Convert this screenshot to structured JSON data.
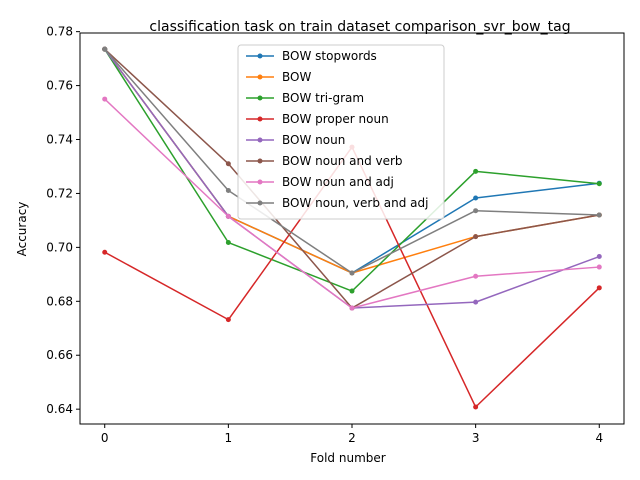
{
  "chart_data": {
    "type": "line",
    "title": "classification task on train dataset comparison_svr_bow_tag",
    "xlabel": "Fold number",
    "ylabel": "Accuracy",
    "x": [
      0,
      1,
      2,
      3,
      4
    ],
    "xticks": [
      0,
      1,
      2,
      3,
      4
    ],
    "yticks": [
      0.64,
      0.66,
      0.68,
      0.7,
      0.72,
      0.74,
      0.76,
      0.78
    ],
    "xlim": [
      -0.2,
      4.2
    ],
    "ylim": [
      0.6345,
      0.7795
    ],
    "grid": false,
    "legend_position": "upper-center",
    "series": [
      {
        "name": "BOW stopwords",
        "color": "#1f77b4",
        "values": [
          0.7735,
          0.7115,
          0.6905,
          0.7183,
          0.7238
        ]
      },
      {
        "name": "BOW",
        "color": "#ff7f0e",
        "values": [
          0.7735,
          0.7115,
          0.6905,
          0.704,
          0.712
        ]
      },
      {
        "name": "BOW tri-gram",
        "color": "#2ca02c",
        "values": [
          0.7735,
          0.7018,
          0.6838,
          0.7282,
          0.7236
        ]
      },
      {
        "name": "BOW proper noun",
        "color": "#d62728",
        "values": [
          0.6982,
          0.6732,
          0.7372,
          0.6408,
          0.685
        ]
      },
      {
        "name": "BOW noun",
        "color": "#9467bd",
        "values": [
          0.7735,
          0.7115,
          0.6775,
          0.6797,
          0.6966
        ]
      },
      {
        "name": "BOW noun and verb",
        "color": "#8c564b",
        "values": [
          0.7735,
          0.731,
          0.6775,
          0.704,
          0.712
        ]
      },
      {
        "name": "BOW noun and adj",
        "color": "#e377c2",
        "values": [
          0.755,
          0.7115,
          0.6775,
          0.6893,
          0.6927
        ]
      },
      {
        "name": "BOW noun, verb and adj",
        "color": "#7f7f7f",
        "values": [
          0.7735,
          0.7211,
          0.6905,
          0.7136,
          0.712
        ]
      }
    ]
  }
}
